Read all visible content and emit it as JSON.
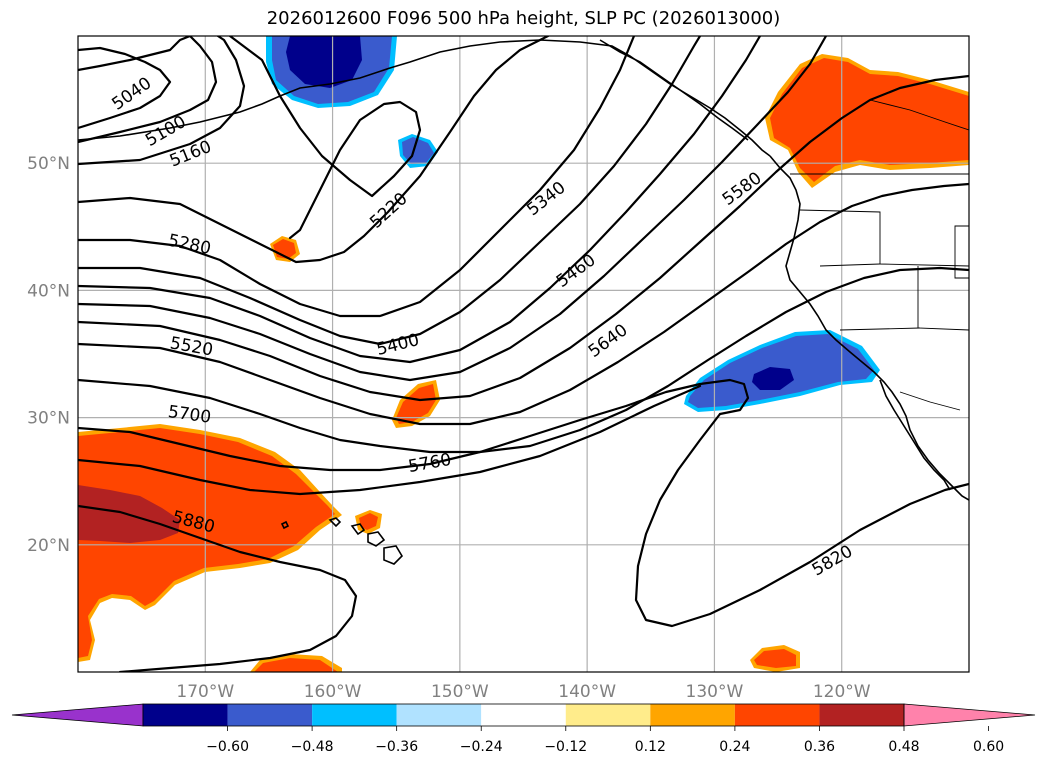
{
  "title": "2026012600 F096 500 hPa height, SLP PC (2026013000)",
  "map": {
    "lon_range": [
      -180,
      -110
    ],
    "lat_range": [
      10,
      60
    ],
    "lat_ticks": [
      {
        "value": 20,
        "label": "20°N"
      },
      {
        "value": 30,
        "label": "30°N"
      },
      {
        "value": 40,
        "label": "40°N"
      },
      {
        "value": 50,
        "label": "50°N"
      }
    ],
    "lon_ticks": [
      {
        "value": -170,
        "label": "170°W"
      },
      {
        "value": -160,
        "label": "160°W"
      },
      {
        "value": -150,
        "label": "150°W"
      },
      {
        "value": -140,
        "label": "140°W"
      },
      {
        "value": -130,
        "label": "130°W"
      },
      {
        "value": -120,
        "label": "120°W"
      }
    ],
    "contour_labels": [
      "5040",
      "5100",
      "5160",
      "5220",
      "5280",
      "5340",
      "5400",
      "5460",
      "5520",
      "5580",
      "5640",
      "5700",
      "5760",
      "5820",
      "5880"
    ]
  },
  "colorbar": {
    "colors": [
      "#9932cc",
      "#00008b",
      "#3a5bcd",
      "#00bfff",
      "#b0e2ff",
      "#ffffff",
      "#ffec8b",
      "#ffa500",
      "#ff4500",
      "#b22222",
      "#ff82ab"
    ],
    "ticks": [
      "−0.60",
      "−0.48",
      "−0.36",
      "−0.24",
      "−0.12",
      "0.12",
      "0.24",
      "0.36",
      "0.48",
      "0.60"
    ]
  }
}
